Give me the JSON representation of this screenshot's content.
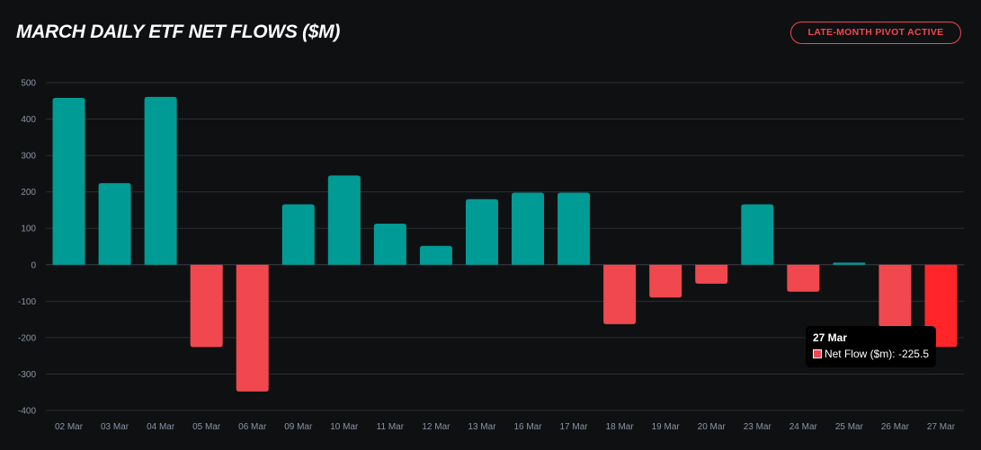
{
  "header": {
    "title": "MARCH DAILY ETF NET FLOWS ($M)",
    "badge": "LATE-MONTH PIVOT ACTIVE"
  },
  "colors": {
    "positive": "#009b95",
    "negative": "#f0484e",
    "highlight": "#ff2528",
    "grid": "#2a2d33",
    "axis_text": "#8a94a6"
  },
  "chart_data": {
    "type": "bar",
    "title": "MARCH DAILY ETF NET FLOWS ($M)",
    "xlabel": "",
    "ylabel": "",
    "ylim": [
      -400,
      500
    ],
    "yticks": [
      500,
      400,
      300,
      200,
      100,
      0,
      -100,
      -200,
      -300,
      -400
    ],
    "grid": true,
    "legend": "none",
    "categories": [
      "02 Mar",
      "03 Mar",
      "04 Mar",
      "05 Mar",
      "06 Mar",
      "09 Mar",
      "10 Mar",
      "11 Mar",
      "12 Mar",
      "13 Mar",
      "16 Mar",
      "17 Mar",
      "18 Mar",
      "19 Mar",
      "20 Mar",
      "23 Mar",
      "24 Mar",
      "25 Mar",
      "26 Mar",
      "27 Mar"
    ],
    "series": [
      {
        "name": "Net Flow ($m)",
        "values": [
          458,
          224,
          461,
          -226,
          -348,
          166,
          245,
          113,
          52,
          180,
          198,
          198,
          -163,
          -90,
          -52,
          166,
          -74,
          6,
          -170,
          -225.5
        ]
      }
    ],
    "highlight_index": 19
  },
  "tooltip": {
    "title": "27 Mar",
    "label": "Net Flow ($m): -225.5"
  }
}
